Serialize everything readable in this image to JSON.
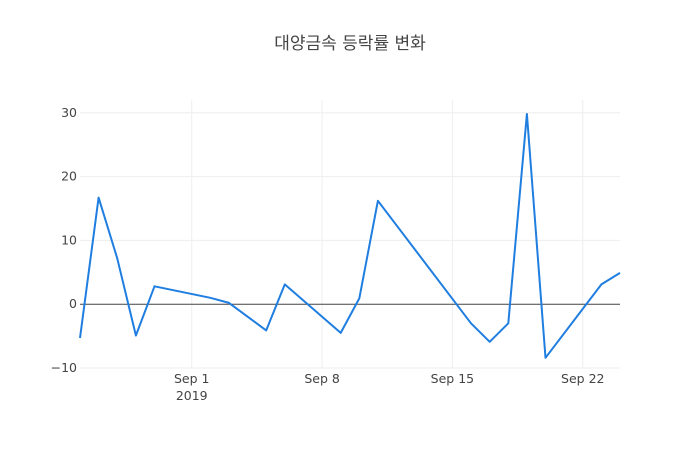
{
  "chart_data": {
    "type": "line",
    "title": "대양금속 등락률 변화",
    "xlabel": "",
    "ylabel": "",
    "ylim": [
      -10,
      32
    ],
    "xlim": [
      "2019-08-26",
      "2019-09-24"
    ],
    "x_ticks": [
      {
        "date": "2019-09-01",
        "label": "Sep 1",
        "sublabel": "2019"
      },
      {
        "date": "2019-09-08",
        "label": "Sep 8",
        "sublabel": ""
      },
      {
        "date": "2019-09-15",
        "label": "Sep 15",
        "sublabel": ""
      },
      {
        "date": "2019-09-22",
        "label": "Sep 22",
        "sublabel": ""
      }
    ],
    "y_ticks": [
      -10,
      0,
      10,
      20,
      30
    ],
    "grid": true,
    "zero_line": true,
    "line_color": "#1f7ee0",
    "series": [
      {
        "x": [
          "2019-08-26",
          "2019-08-27",
          "2019-08-28",
          "2019-08-29",
          "2019-08-30",
          "2019-09-02",
          "2019-09-03",
          "2019-09-05",
          "2019-09-06",
          "2019-09-09",
          "2019-09-10",
          "2019-09-11",
          "2019-09-16",
          "2019-09-17",
          "2019-09-18",
          "2019-09-19",
          "2019-09-20",
          "2019-09-23",
          "2019-09-24"
        ],
        "y": [
          -5.3,
          16.7,
          7.2,
          -4.9,
          2.8,
          1.0,
          0.2,
          -4.1,
          3.1,
          -4.5,
          0.9,
          16.2,
          -3.0,
          -5.9,
          -3.0,
          29.8,
          -8.4,
          3.1,
          4.9
        ]
      }
    ]
  }
}
